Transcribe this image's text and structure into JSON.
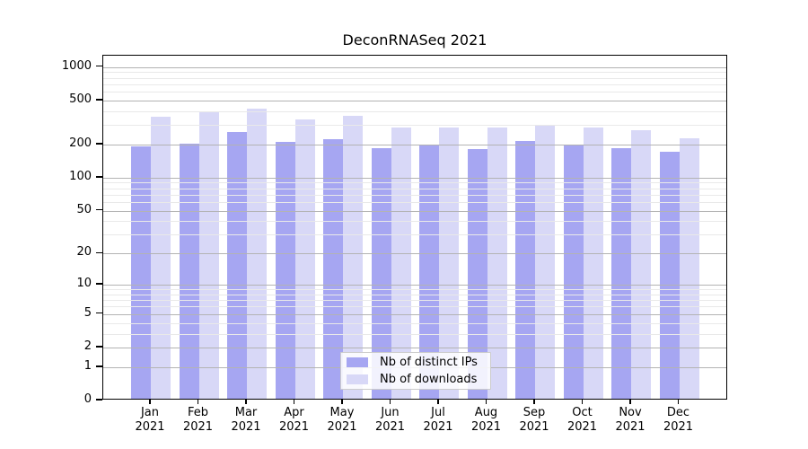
{
  "title": "DeconRNASeq 2021",
  "chart_data": {
    "type": "bar",
    "title": "DeconRNASeq 2021",
    "categories": [
      "Jan 2021",
      "Feb 2021",
      "Mar 2021",
      "Apr 2021",
      "May 2021",
      "Jun 2021",
      "Jul 2021",
      "Aug 2021",
      "Sep 2021",
      "Oct 2021",
      "Nov 2021",
      "Dec 2021"
    ],
    "series": [
      {
        "name": "Nb of distinct IPs",
        "color": "#a6a6f2",
        "values": [
          185,
          197,
          250,
          204,
          216,
          180,
          190,
          174,
          208,
          190,
          179,
          164
        ]
      },
      {
        "name": "Nb of downloads",
        "color": "#d8d8f7",
        "values": [
          345,
          380,
          408,
          325,
          350,
          273,
          273,
          272,
          285,
          272,
          261,
          220
        ]
      }
    ],
    "xlabel": "",
    "ylabel": "",
    "yscale": "log1p",
    "ylim": [
      0,
      1262
    ],
    "yticks": [
      0,
      1,
      2,
      5,
      10,
      20,
      50,
      100,
      200,
      500,
      1000
    ],
    "minor_gridlines": [
      3,
      4,
      6,
      7,
      8,
      9,
      30,
      40,
      60,
      70,
      80,
      90,
      300,
      400,
      600,
      700,
      800,
      900
    ],
    "grid": true,
    "legend_position": "lower center"
  },
  "colors": {
    "major_grid": "#b3b3b3",
    "minor_grid": "#e9e9e9",
    "spine": "#000000",
    "background": "#ffffff"
  }
}
